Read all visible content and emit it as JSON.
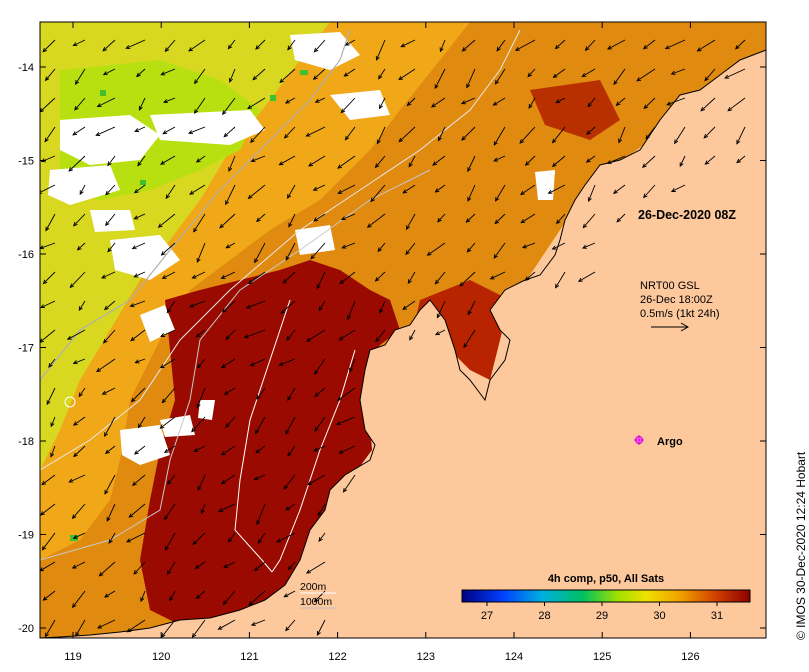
{
  "map": {
    "title": "26-Dec-2020 08Z",
    "x_ticks": [
      "119",
      "120",
      "121",
      "122",
      "123",
      "124",
      "125",
      "126"
    ],
    "y_ticks": [
      "-14",
      "-15",
      "-16",
      "-17",
      "-18",
      "-19",
      "-20"
    ],
    "current_info": {
      "line1": "NRT00 GSL",
      "line2": "26-Dec 18:00Z",
      "line3": "0.5m/s (1kt 24h)"
    },
    "argo_label": "Argo",
    "bathymetry_legend": {
      "contour1": "200m",
      "contour2": "1000m"
    },
    "colorbar": {
      "title": "4h comp, p50, All Sats",
      "ticks": [
        "27",
        "28",
        "29",
        "30",
        "31"
      ]
    },
    "credit": "© IMOS 30-Dec-2020 12:24 Hobart",
    "colors": {
      "land": "#fcc89c",
      "hot": "#8b0000",
      "warm": "#d47300",
      "mild": "#f0b000",
      "cool": "#c8e000",
      "cloud": "#ffffff",
      "argo": "#cc00cc"
    }
  }
}
